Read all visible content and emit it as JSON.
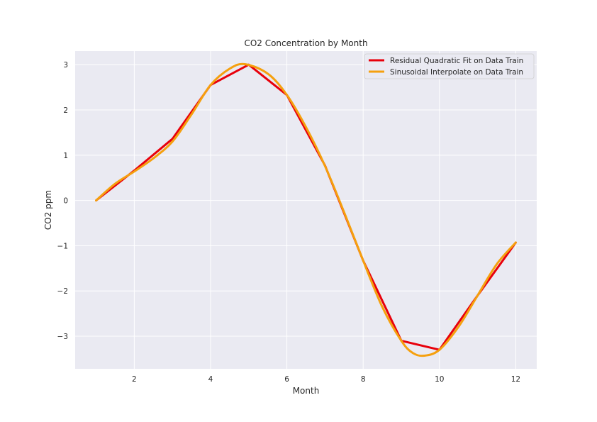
{
  "chart_data": {
    "type": "line",
    "title": "CO2 Concentration by Month",
    "xlabel": "Month",
    "ylabel": "CO2 ppm",
    "xlim": [
      0.45,
      12.55
    ],
    "ylim": [
      -3.72,
      3.3
    ],
    "xticks": [
      2,
      4,
      6,
      8,
      10,
      12
    ],
    "xtick_labels": [
      "2",
      "4",
      "6",
      "8",
      "10",
      "12"
    ],
    "yticks": [
      -3,
      -2,
      -1,
      0,
      1,
      2,
      3
    ],
    "ytick_labels": [
      "−3",
      "−2",
      "−1",
      "0",
      "1",
      "2",
      "3"
    ],
    "grid": true,
    "background": "#eaeaf2",
    "legend_position": "top-right",
    "series": [
      {
        "name": "Residual Quadratic Fit on Data Train",
        "color": "#e8000b",
        "smooth": false,
        "x": [
          1,
          2,
          3,
          4,
          5,
          6,
          7,
          8,
          9,
          10,
          11,
          12
        ],
        "y": [
          0.0,
          0.66,
          1.36,
          2.55,
          3.0,
          2.33,
          0.77,
          -1.33,
          -3.1,
          -3.3,
          -2.1,
          -0.93
        ]
      },
      {
        "name": "Sinusoidal Interpolate on Data Train",
        "color": "#f5a00e",
        "smooth": true,
        "x": [
          1,
          1.5,
          2,
          2.5,
          3,
          3.5,
          4,
          4.5,
          4.9,
          5.5,
          6,
          6.5,
          7,
          7.5,
          8,
          8.5,
          9,
          9.3,
          9.6,
          10,
          10.5,
          11,
          11.5,
          12
        ],
        "y": [
          0.0,
          0.37,
          0.64,
          0.93,
          1.3,
          1.9,
          2.55,
          2.91,
          3.01,
          2.8,
          2.33,
          1.62,
          0.76,
          -0.26,
          -1.33,
          -2.35,
          -3.1,
          -3.37,
          -3.43,
          -3.3,
          -2.79,
          -2.1,
          -1.41,
          -0.93
        ]
      }
    ]
  }
}
